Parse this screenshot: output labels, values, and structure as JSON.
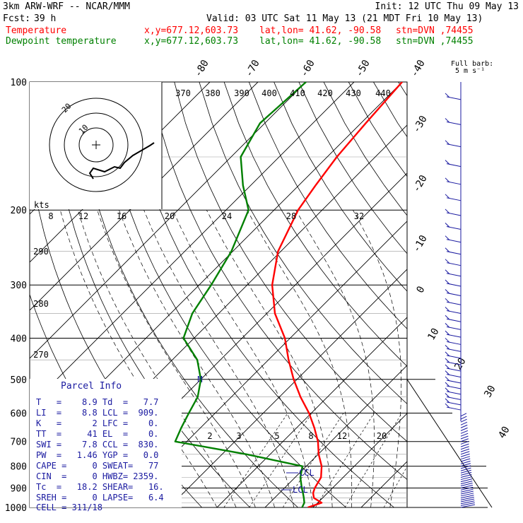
{
  "header": {
    "model": "3km ARW-WRF -- NCAR/MMM",
    "init": "Init: 12 UTC Thu 09 May 13",
    "fcst_label": "Fcst:",
    "fcst_value": "39 h",
    "valid": "Valid: 03 UTC Sat 11 May 13 (21 MDT Fri 10 May 13)",
    "temperature_label": "Temperature",
    "dewpoint_label": "Dewpoint temperature",
    "xy": "x,y=677.12,603.73",
    "latlon": "lat,lon= 41.62, -90.58",
    "station": "stn=DVN ,74455"
  },
  "colors": {
    "temperature": "#ff0000",
    "dewpoint": "#008000",
    "parcel": "#1a1aa0",
    "grid": "#000000"
  },
  "pressure_labels": [
    "100",
    "200",
    "300",
    "400",
    "500",
    "600",
    "700",
    "800",
    "900",
    "1000"
  ],
  "skew_temp_labels": [
    "-80",
    "-70",
    "-60",
    "-50",
    "-40",
    "-30",
    "-20",
    "-10",
    "0",
    "10",
    "20",
    "30",
    "40"
  ],
  "theta_labels": [
    "370",
    "380",
    "390",
    "400",
    "410",
    "420",
    "430",
    "440",
    "290",
    "280",
    "270"
  ],
  "hodograph": {
    "kts_label": "kts",
    "speed_ticks": [
      "8",
      "12",
      "16",
      "20",
      "24",
      "28",
      "32"
    ],
    "ring_labels": [
      "20",
      "10"
    ]
  },
  "mixing_ratio_labels": [
    "2",
    "3",
    "5",
    "8",
    "12",
    "20"
  ],
  "markers": {
    "m": "M",
    "ccl": "CCL",
    "lcl": "LCL"
  },
  "barb_legend": {
    "title": "Full barb:",
    "value": "5 m s⁻¹"
  },
  "parcel_info": {
    "title": "Parcel Info",
    "rows": [
      "T   =    8.9 Td  =   7.7",
      "LI  =    8.8 LCL =  909.",
      "K   =      2 LFC =    0.",
      "TT  =     41 EL  =    0.",
      "SWI =    7.8 CCL =  830.",
      "PW  =   1.46 YGP =   0.0",
      "CAPE =     0 SWEAT=   77",
      "CIN  =     0 HWBZ= 2359.",
      "Tc  =   18.2 SHEAR=   16.",
      "SREH =     0 LAPSE=   6.4",
      "CELL = 311/18"
    ]
  },
  "chart_data": {
    "type": "line",
    "title": "",
    "xlabel": "",
    "ylabel": "",
    "y_axis": "pressure (hPa), log scale",
    "ylim": [
      1000,
      100
    ],
    "series": [
      {
        "name": "Temperature",
        "color": "#ff0000",
        "pressure": [
          1000,
          975,
          950,
          925,
          900,
          850,
          800,
          750,
          700,
          650,
          600,
          550,
          500,
          450,
          400,
          350,
          300,
          250,
          200,
          175,
          150,
          125,
          100
        ],
        "values": [
          8.9,
          10.8,
          8.2,
          7.0,
          6.3,
          5.4,
          3.2,
          0.1,
          -2.7,
          -6.3,
          -10.5,
          -15.6,
          -20.7,
          -25.8,
          -31.1,
          -38.3,
          -44.8,
          -50.6,
          -55.0,
          -56.5,
          -58.0,
          -59.0,
          -60.0
        ]
      },
      {
        "name": "Dewpoint temperature",
        "color": "#008000",
        "pressure": [
          1000,
          975,
          950,
          925,
          900,
          850,
          800,
          750,
          700,
          650,
          600,
          550,
          500,
          450,
          400,
          350,
          300,
          250,
          200,
          175,
          150,
          125,
          100
        ],
        "values": [
          7.7,
          7.2,
          6.1,
          4.9,
          3.6,
          1.1,
          -0.8,
          -14.9,
          -32.4,
          -34.0,
          -35.5,
          -37.0,
          -40.0,
          -44.8,
          -52.2,
          -55.5,
          -57.5,
          -60.3,
          -65.3,
          -71.6,
          -78.0,
          -81.0,
          -80.0
        ]
      }
    ]
  }
}
